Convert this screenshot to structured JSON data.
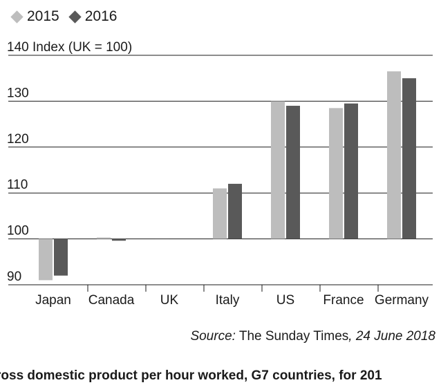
{
  "chart_data": {
    "type": "bar",
    "categories": [
      "Japan",
      "Canada",
      "UK",
      "Italy",
      "US",
      "France",
      "Germany"
    ],
    "series": [
      {
        "name": "2015",
        "values": [
          91,
          100.3,
          100,
          111,
          130,
          128.5,
          136.5
        ]
      },
      {
        "name": "2016",
        "values": [
          92,
          99.6,
          100,
          112,
          129,
          129.5,
          135
        ]
      }
    ],
    "colors": {
      "2015": "#bdbdbd",
      "2016": "#595959"
    },
    "ylabel": "Index (UK = 100)",
    "ylim": [
      90,
      140
    ],
    "baseline": 100,
    "yticks": [
      90,
      100,
      110,
      120,
      130,
      140
    ],
    "grid": true,
    "legend": "top-left"
  },
  "legend": [
    {
      "label": "2015",
      "color": "#bdbdbd"
    },
    {
      "label": "2016",
      "color": "#595959"
    }
  ],
  "source": {
    "prefix": "Source:",
    "name": " The Sunday Times",
    "date": ", 24 June 2018"
  },
  "caption": "ross domestic product per hour worked, G7 countries, for 201"
}
